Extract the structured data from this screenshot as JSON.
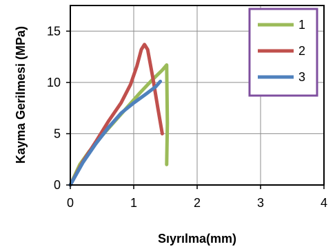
{
  "chart_data": {
    "type": "line",
    "xlabel": "Sıyrılma(mm)",
    "ylabel": "Kayma Gerilmesi (MPa)",
    "xlim": [
      0,
      4
    ],
    "ylim": [
      0,
      17.5
    ],
    "xticks": [
      "0",
      "1",
      "2",
      "3",
      "4"
    ],
    "yticks": [
      "0",
      "5",
      "10",
      "15"
    ],
    "grid": true,
    "legend_position": "top-right",
    "series": [
      {
        "name": "1",
        "color": "#9bbb59",
        "points": [
          [
            0,
            0
          ],
          [
            0.15,
            2.0
          ],
          [
            0.3,
            3.3
          ],
          [
            0.5,
            4.8
          ],
          [
            0.7,
            6.2
          ],
          [
            0.9,
            7.6
          ],
          [
            1.1,
            9.0
          ],
          [
            1.3,
            10.3
          ],
          [
            1.45,
            11.2
          ],
          [
            1.52,
            11.7
          ],
          [
            1.53,
            6.0
          ],
          [
            1.52,
            2.0
          ]
        ]
      },
      {
        "name": "2",
        "color": "#c0504d",
        "points": [
          [
            0,
            0
          ],
          [
            0.2,
            2.3
          ],
          [
            0.4,
            4.2
          ],
          [
            0.6,
            6.2
          ],
          [
            0.8,
            8.0
          ],
          [
            0.95,
            9.8
          ],
          [
            1.05,
            11.6
          ],
          [
            1.12,
            13.2
          ],
          [
            1.17,
            13.7
          ],
          [
            1.22,
            13.2
          ],
          [
            1.3,
            10.5
          ],
          [
            1.38,
            7.5
          ],
          [
            1.45,
            5.0
          ]
        ]
      },
      {
        "name": "3",
        "color": "#4f81bd",
        "points": [
          [
            0,
            0
          ],
          [
            0.2,
            2.2
          ],
          [
            0.4,
            4.0
          ],
          [
            0.6,
            5.6
          ],
          [
            0.8,
            7.0
          ],
          [
            1.0,
            8.0
          ],
          [
            1.2,
            8.9
          ],
          [
            1.35,
            9.6
          ],
          [
            1.42,
            10.1
          ]
        ]
      }
    ]
  }
}
